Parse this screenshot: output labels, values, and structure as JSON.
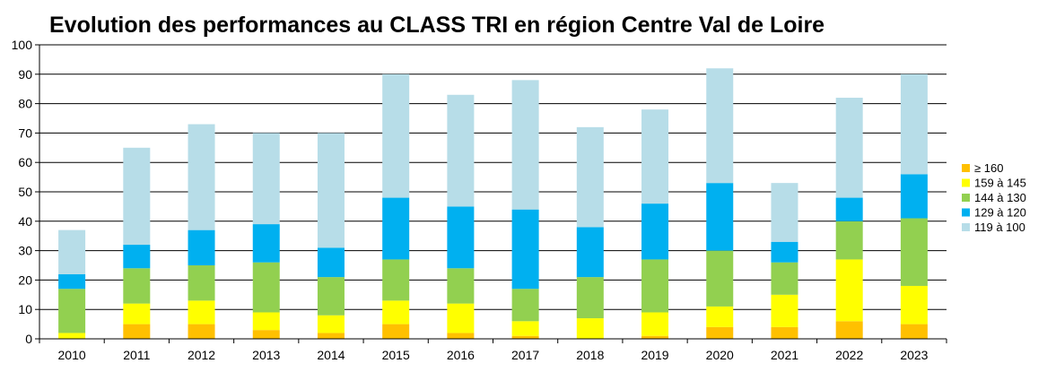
{
  "chart_data": {
    "type": "bar",
    "stacked": true,
    "title": "Evolution des performances au CLASS TRI en région Centre Val de Loire",
    "xlabel": "",
    "ylabel": "",
    "ylim": [
      0,
      100
    ],
    "yticks": [
      0,
      10,
      20,
      30,
      40,
      50,
      60,
      70,
      80,
      90,
      100
    ],
    "grid": true,
    "legend_position": "right",
    "categories": [
      "2010",
      "2011",
      "2012",
      "2013",
      "2014",
      "2015",
      "2016",
      "2017",
      "2018",
      "2019",
      "2020",
      "2021",
      "2022",
      "2023"
    ],
    "series": [
      {
        "name": "≥ 160",
        "color": "#ffc000",
        "values": [
          0,
          5,
          5,
          3,
          2,
          5,
          2,
          1,
          0,
          1,
          4,
          4,
          6,
          5
        ]
      },
      {
        "name": "159 à 145",
        "color": "#ffff00",
        "values": [
          2,
          7,
          8,
          6,
          6,
          8,
          10,
          5,
          7,
          8,
          7,
          11,
          21,
          13
        ]
      },
      {
        "name": "144 à 130",
        "color": "#92d050",
        "values": [
          15,
          12,
          12,
          17,
          13,
          14,
          12,
          11,
          14,
          18,
          19,
          11,
          13,
          23
        ]
      },
      {
        "name": "129 à 120",
        "color": "#00b0f0",
        "values": [
          5,
          8,
          12,
          13,
          10,
          21,
          21,
          27,
          17,
          19,
          23,
          7,
          8,
          15
        ]
      },
      {
        "name": "119 à 100",
        "color": "#b7dde8",
        "values": [
          15,
          33,
          36,
          31,
          39,
          42,
          38,
          44,
          34,
          32,
          39,
          20,
          34,
          34
        ]
      }
    ]
  }
}
